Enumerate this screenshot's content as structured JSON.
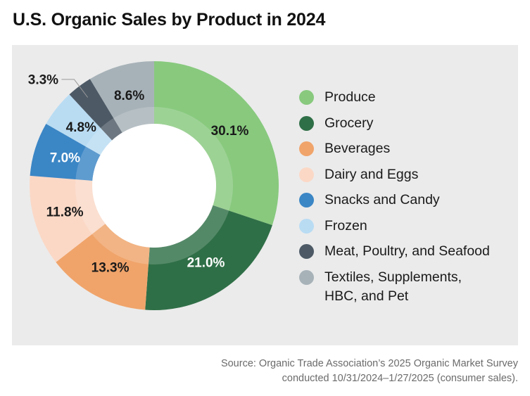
{
  "title": "U.S. Organic Sales by Product in 2024",
  "source": {
    "line1": "Source: Organic Trade Association’s 2025 Organic Market Survey",
    "line2": "conducted 10/31/2024–1/27/2025 (consumer sales)."
  },
  "chart_data": {
    "type": "pie",
    "variant": "donut",
    "title": "U.S. Organic Sales by Product in 2024",
    "legend_position": "right",
    "series": [
      {
        "label": "Produce",
        "value": 30.1,
        "display": "30.1%",
        "color": "#88c97e",
        "label_color": "#1a1a1a"
      },
      {
        "label": "Grocery",
        "value": 21.0,
        "display": "21.0%",
        "color": "#2f6f47",
        "label_color": "#ffffff"
      },
      {
        "label": "Beverages",
        "value": 13.3,
        "display": "13.3%",
        "color": "#f0a46a",
        "label_color": "#1a1a1a"
      },
      {
        "label": "Dairy and Eggs",
        "value": 11.8,
        "display": "11.8%",
        "color": "#fbd8c6",
        "label_color": "#1a1a1a"
      },
      {
        "label": "Snacks and Candy",
        "value": 7.0,
        "display": "7.0%",
        "color": "#3b86c5",
        "label_color": "#ffffff"
      },
      {
        "label": "Frozen",
        "value": 4.8,
        "display": "4.8%",
        "color": "#b9dcf3",
        "label_color": "#1a1a1a"
      },
      {
        "label": "Meat, Poultry, and Seafood",
        "value": 3.3,
        "display": "3.3%",
        "color": "#4d5a66",
        "label_color": "#1a1a1a"
      },
      {
        "label": "Textiles, Supplements,\nHBC, and Pet",
        "value": 8.6,
        "display": "8.6%",
        "color": "#a7b2b8",
        "label_color": "#1a1a1a"
      }
    ]
  }
}
